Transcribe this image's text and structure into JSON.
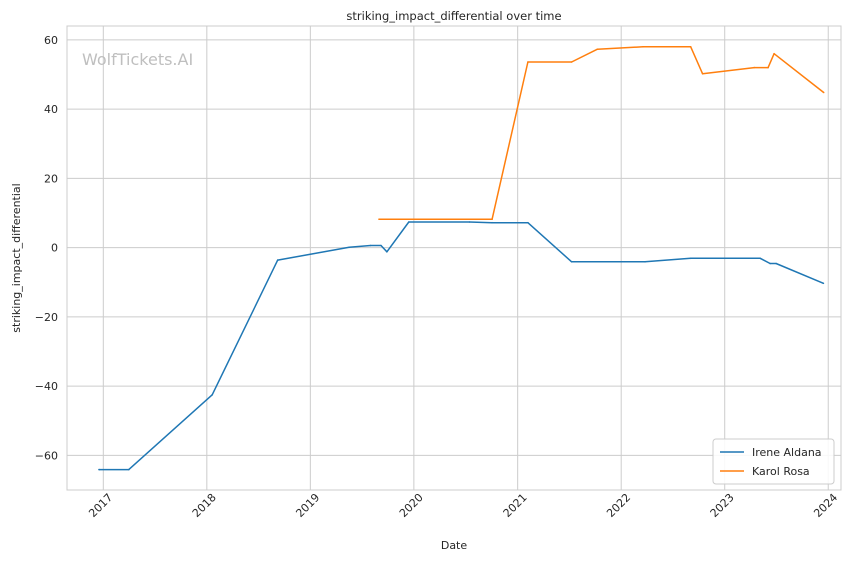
{
  "watermark": "WolfTickets.AI",
  "chart_data": {
    "type": "line",
    "title": "striking_impact_differential over time",
    "xlabel": "Date",
    "ylabel": "striking_impact_differential",
    "xlim": [
      "2016-08-26",
      "2024-02-15"
    ],
    "ylim": [
      -70,
      64
    ],
    "x_tick_labels": [
      "2017",
      "2018",
      "2019",
      "2020",
      "2021",
      "2022",
      "2023",
      "2024"
    ],
    "y_tick_values": [
      -60,
      -40,
      -20,
      0,
      20,
      40,
      60
    ],
    "y_tick_labels": [
      "−60",
      "−40",
      "−20",
      "0",
      "20",
      "40",
      "60"
    ],
    "grid": true,
    "legend_position": "bottom-right",
    "series": [
      {
        "name": "Irene Aldana",
        "color": "#1f77b4",
        "points": [
          {
            "x": "2016-12-17",
            "y": -64.1
          },
          {
            "x": "2017-04-01",
            "y": -64.1
          },
          {
            "x": "2018-01-20",
            "y": -42.5
          },
          {
            "x": "2018-09-08",
            "y": -3.6
          },
          {
            "x": "2019-05-18",
            "y": 0.1
          },
          {
            "x": "2019-08-01",
            "y": 0.6
          },
          {
            "x": "2019-09-07",
            "y": 0.6
          },
          {
            "x": "2019-09-28",
            "y": -1.2
          },
          {
            "x": "2019-12-14",
            "y": 7.4
          },
          {
            "x": "2020-07-15",
            "y": 7.4
          },
          {
            "x": "2020-10-03",
            "y": 7.2
          },
          {
            "x": "2021-02-06",
            "y": 7.2
          },
          {
            "x": "2021-07-10",
            "y": -4.1
          },
          {
            "x": "2022-03-26",
            "y": -4.1
          },
          {
            "x": "2022-09-03",
            "y": -3.1
          },
          {
            "x": "2023-05-06",
            "y": -3.1
          },
          {
            "x": "2023-06-10",
            "y": -4.6
          },
          {
            "x": "2023-07-01",
            "y": -4.6
          },
          {
            "x": "2023-12-15",
            "y": -10.3
          }
        ]
      },
      {
        "name": "Karol Rosa",
        "color": "#ff7f0e",
        "points": [
          {
            "x": "2019-08-31",
            "y": 8.2
          },
          {
            "x": "2020-10-03",
            "y": 8.2
          },
          {
            "x": "2021-02-06",
            "y": 53.6
          },
          {
            "x": "2021-07-10",
            "y": 53.6
          },
          {
            "x": "2021-10-09",
            "y": 57.3
          },
          {
            "x": "2022-03-19",
            "y": 58.0
          },
          {
            "x": "2022-09-03",
            "y": 58.0
          },
          {
            "x": "2022-10-15",
            "y": 50.2
          },
          {
            "x": "2023-04-15",
            "y": 52.0
          },
          {
            "x": "2023-06-03",
            "y": 52.0
          },
          {
            "x": "2023-06-24",
            "y": 56.0
          },
          {
            "x": "2023-12-16",
            "y": 44.8
          }
        ]
      }
    ]
  }
}
